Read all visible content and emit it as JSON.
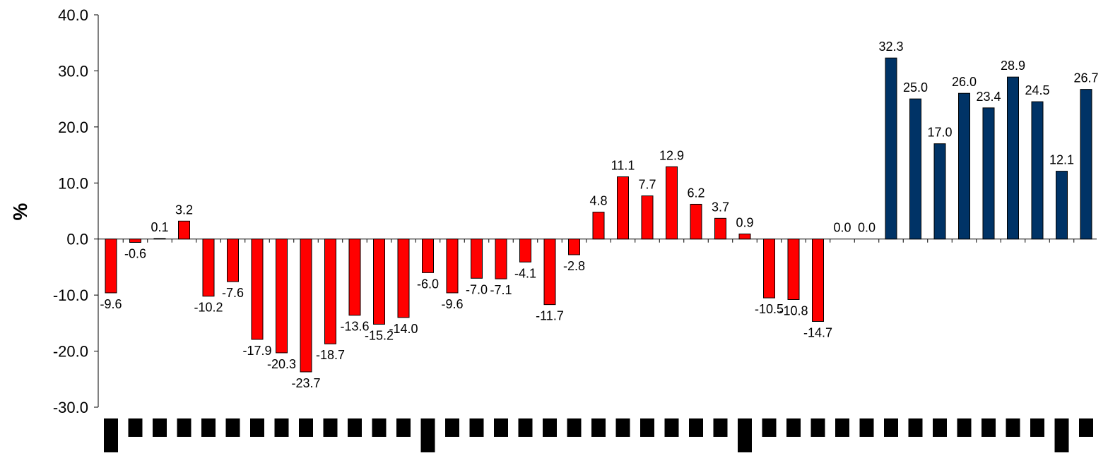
{
  "chart_data": {
    "type": "bar",
    "title": "",
    "xlabel": "",
    "ylabel": "%",
    "ylim": [
      -30,
      40
    ],
    "yticks": [
      "40.0",
      "30.0",
      "20.0",
      "10.0",
      "0.0",
      "-10.0",
      "-20.0",
      "-30.0"
    ],
    "grid": false,
    "legend": "none",
    "colors": {
      "negative_phase": "#ff0000",
      "positive_phase": "#003366",
      "category_marks": "#000000"
    },
    "values": [
      -9.6,
      -0.6,
      0.1,
      3.2,
      -10.2,
      -7.6,
      -17.9,
      -20.3,
      -23.7,
      -18.7,
      -13.6,
      -15.2,
      -14.0,
      -6.0,
      -9.6,
      -7.0,
      -7.1,
      -4.1,
      -11.7,
      -2.8,
      4.8,
      11.1,
      7.7,
      12.9,
      6.2,
      3.7,
      0.9,
      -10.5,
      -10.8,
      -14.7,
      0.0,
      0.0,
      32.3,
      25.0,
      17.0,
      26.0,
      23.4,
      28.9,
      24.5,
      12.1,
      26.7
    ],
    "labels": [
      "-9.6",
      "-0.6",
      "0.1",
      "3.2",
      "-10.2",
      "-7.6",
      "-17.9",
      "-20.3",
      "-23.7",
      "-18.7",
      "-13.6",
      "-15.2",
      "-14.0",
      "-6.0",
      "-9.6",
      "-7.0",
      "-7.1",
      "-4.1",
      "-11.7",
      "-2.8",
      "4.8",
      "11.1",
      "7.7",
      "12.9",
      "6.2",
      "3.7",
      "0.9",
      "-10.5",
      "-10.8",
      "-14.7",
      "0.0",
      "0.0",
      "32.3",
      "25.0",
      "17.0",
      "26.0",
      "23.4",
      "28.9",
      "24.5",
      "12.1",
      "26.7"
    ],
    "bar_colors": [
      "red",
      "red",
      "red",
      "red",
      "red",
      "red",
      "red",
      "red",
      "red",
      "red",
      "red",
      "red",
      "red",
      "red",
      "red",
      "red",
      "red",
      "red",
      "red",
      "red",
      "red",
      "red",
      "red",
      "red",
      "red",
      "red",
      "red",
      "red",
      "red",
      "red",
      "red",
      "red",
      "blue",
      "blue",
      "blue",
      "blue",
      "blue",
      "blue",
      "blue",
      "blue",
      "blue"
    ]
  }
}
